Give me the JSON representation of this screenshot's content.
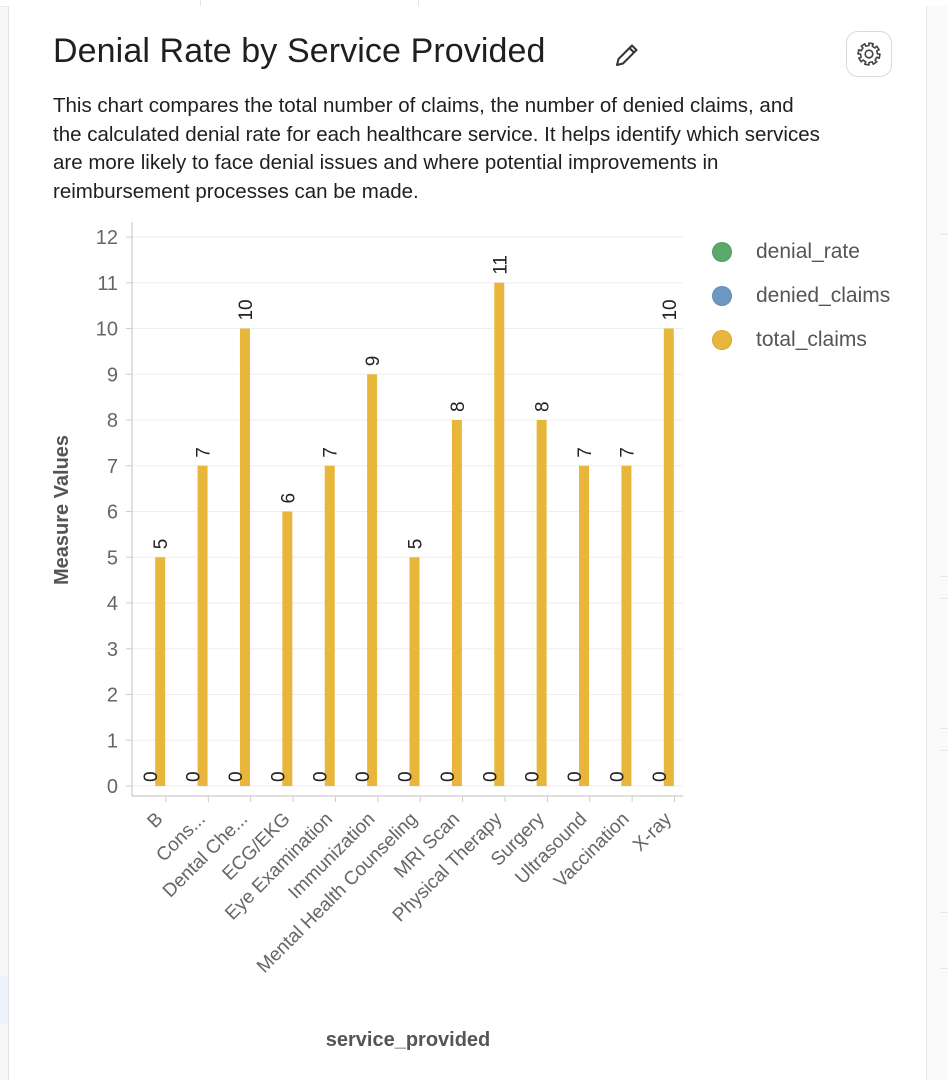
{
  "card": {
    "title": "Denial Rate by Service Provided",
    "description": "This chart compares the total number of claims, the number of denied claims, and the calculated denial rate for each healthcare service. It helps identify which services are more likely to face denial issues and where potential improvements in reimbursement processes can be made.",
    "edit_icon": "pencil-icon",
    "settings_icon": "gear-icon"
  },
  "colors": {
    "denial_rate": "#5aaa6a",
    "denied_claims": "#6c98c2",
    "total_claims": "#e8b63a",
    "axis": "#cccccc",
    "grid": "#eeeeee",
    "tick_text": "#666666",
    "label_text": "#555555"
  },
  "chart_data": {
    "type": "bar",
    "xlabel": "service_provided",
    "ylabel": "Measure Values",
    "ylim": [
      0,
      12
    ],
    "yticks": [
      0,
      1,
      2,
      3,
      4,
      5,
      6,
      7,
      8,
      9,
      10,
      11,
      12
    ],
    "grid": true,
    "legend_position": "right",
    "categories": [
      "B",
      "Cons...",
      "Dental Che...",
      "ECG/EKG",
      "Eye Examination",
      "Immunization",
      "Mental Health Counseling",
      "MRI Scan",
      "Physical Therapy",
      "Surgery",
      "Ultrasound",
      "Vaccination",
      "X-ray"
    ],
    "series": [
      {
        "name": "denial_rate",
        "values": [
          0,
          0,
          0,
          0,
          0,
          0,
          0,
          0,
          0,
          0,
          0,
          0,
          0
        ]
      },
      {
        "name": "denied_claims",
        "values": [
          0,
          0,
          0,
          0,
          0,
          0,
          0,
          0,
          0,
          0,
          0,
          0,
          0
        ]
      },
      {
        "name": "total_claims",
        "values": [
          5,
          7,
          10,
          6,
          7,
          9,
          5,
          8,
          11,
          8,
          7,
          7,
          10
        ]
      }
    ]
  }
}
